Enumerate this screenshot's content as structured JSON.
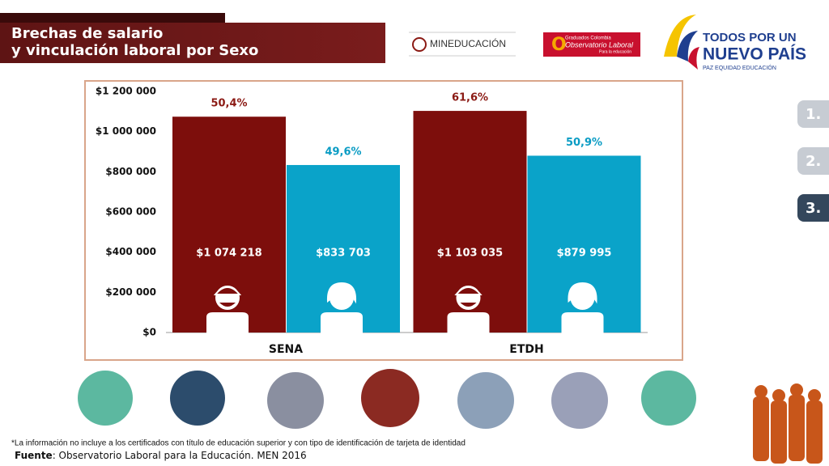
{
  "header": {
    "title_lines": [
      "Brechas de salario",
      "y vinculación laboral por Sexo"
    ],
    "logos": {
      "mineducacion": "MINEDUCACIÓN",
      "observatorio": [
        "Graduados Colombia",
        "Observatorio Laboral",
        "Para la educación"
      ],
      "gobierno": [
        "TODOS POR UN",
        "NUEVO PAÍS",
        "PAZ  EQUIDAD  EDUCACIÓN"
      ]
    }
  },
  "nav": [
    "1.",
    "2.",
    "3."
  ],
  "chart_data": {
    "type": "bar",
    "categories": [
      "SENA",
      "ETDH"
    ],
    "series": [
      {
        "color": "#7d0e0c",
        "values": [
          1074218,
          1103035
        ],
        "value_labels": [
          "$1 074 218",
          "$1 103 035"
        ],
        "percent_labels": [
          "50,4%",
          "61,6%"
        ],
        "percent_color": "#8b1a14"
      },
      {
        "color": "#0aa3c9",
        "values": [
          833703,
          879995
        ],
        "value_labels": [
          "$833 703",
          "$879 995"
        ],
        "percent_labels": [
          "49,6%",
          "50,9%"
        ],
        "percent_color": "#0a9cc4"
      }
    ],
    "ylim": [
      0,
      1200000
    ],
    "yticks": [
      {
        "value": 0,
        "label": "$0"
      },
      {
        "value": 200000,
        "label": "$200 000"
      },
      {
        "value": 400000,
        "label": "$400 000"
      },
      {
        "value": 600000,
        "label": "$600 000"
      },
      {
        "value": 800000,
        "label": "$800 000"
      },
      {
        "value": 1000000,
        "label": "$1 000 000"
      },
      {
        "value": 1200000,
        "label": "$1 200 000"
      }
    ]
  },
  "footer": {
    "note": "*La información no incluye a los certificados con título de educación superior y con tipo de identificación de tarjeta de identidad",
    "source_label": "Fuente",
    "source_text": ": Observatorio Laboral para la Educación. MEN 2016"
  }
}
